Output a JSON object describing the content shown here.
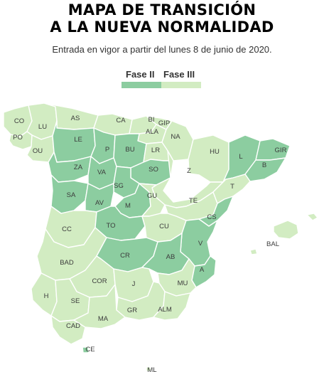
{
  "header": {
    "title_line1": "MAPA DE TRANSICIÓN",
    "title_line2": "A LA NUEVA NORMALIDAD",
    "subtitle": "Entrada en vigor a partir del lunes 8 de junio de 2020."
  },
  "legend": {
    "items": [
      {
        "label": "Fase II",
        "color": "#8ccda0"
      },
      {
        "label": "Fase III",
        "color": "#d2ecc2"
      }
    ]
  },
  "colors": {
    "fase2": "#8ccda0",
    "fase3": "#d2ecc2",
    "border": "#ffffff",
    "label": "#3c3c3c"
  },
  "provinces": [
    {
      "code": "CO",
      "phase": "Fase III"
    },
    {
      "code": "LU",
      "phase": "Fase III"
    },
    {
      "code": "PO",
      "phase": "Fase III"
    },
    {
      "code": "OU",
      "phase": "Fase III"
    },
    {
      "code": "AS",
      "phase": "Fase III"
    },
    {
      "code": "CA",
      "phase": "Fase III"
    },
    {
      "code": "BI",
      "phase": "Fase III"
    },
    {
      "code": "GIP",
      "phase": "Fase III"
    },
    {
      "code": "ALA",
      "phase": "Fase III"
    },
    {
      "code": "NA",
      "phase": "Fase III"
    },
    {
      "code": "LE",
      "phase": "Fase II"
    },
    {
      "code": "P",
      "phase": "Fase II"
    },
    {
      "code": "BU",
      "phase": "Fase II"
    },
    {
      "code": "LR",
      "phase": "Fase III"
    },
    {
      "code": "ZA",
      "phase": "Fase II"
    },
    {
      "code": "VA",
      "phase": "Fase II"
    },
    {
      "code": "SO",
      "phase": "Fase II"
    },
    {
      "code": "HU",
      "phase": "Fase III"
    },
    {
      "code": "L",
      "phase": "Fase II"
    },
    {
      "code": "GIR",
      "phase": "Fase II"
    },
    {
      "code": "B",
      "phase": "Fase II"
    },
    {
      "code": "Z",
      "phase": "Fase III"
    },
    {
      "code": "SG",
      "phase": "Fase II"
    },
    {
      "code": "SA",
      "phase": "Fase II"
    },
    {
      "code": "AV",
      "phase": "Fase II"
    },
    {
      "code": "M",
      "phase": "Fase II"
    },
    {
      "code": "GU",
      "phase": "Fase III"
    },
    {
      "code": "TE",
      "phase": "Fase III"
    },
    {
      "code": "T",
      "phase": "Fase III"
    },
    {
      "code": "CS",
      "phase": "Fase II"
    },
    {
      "code": "CC",
      "phase": "Fase III"
    },
    {
      "code": "TO",
      "phase": "Fase II"
    },
    {
      "code": "CU",
      "phase": "Fase III"
    },
    {
      "code": "V",
      "phase": "Fase II"
    },
    {
      "code": "BAL",
      "phase": "Fase III"
    },
    {
      "code": "BAD",
      "phase": "Fase III"
    },
    {
      "code": "CR",
      "phase": "Fase II"
    },
    {
      "code": "AB",
      "phase": "Fase II"
    },
    {
      "code": "A",
      "phase": "Fase II"
    },
    {
      "code": "COR",
      "phase": "Fase III"
    },
    {
      "code": "J",
      "phase": "Fase III"
    },
    {
      "code": "MU",
      "phase": "Fase III"
    },
    {
      "code": "H",
      "phase": "Fase III"
    },
    {
      "code": "SE",
      "phase": "Fase III"
    },
    {
      "code": "GR",
      "phase": "Fase III"
    },
    {
      "code": "ALM",
      "phase": "Fase III"
    },
    {
      "code": "CAD",
      "phase": "Fase III"
    },
    {
      "code": "MA",
      "phase": "Fase III"
    },
    {
      "code": "CE",
      "phase": "Fase II"
    },
    {
      "code": "ML",
      "phase": "Fase III"
    }
  ]
}
